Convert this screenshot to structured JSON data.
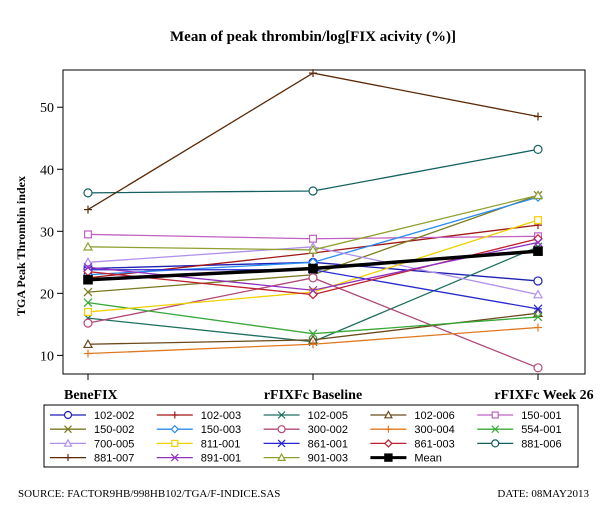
{
  "footer": {
    "source": "SOURCE: FACTOR9HB/998HB102/TGA/F-INDICE.SAS",
    "date": "DATE: 08MAY2013"
  },
  "chart_data": {
    "type": "line",
    "title": "Mean of peak thrombin/log[FIX acivity (%)]",
    "xlabel": "",
    "ylabel": "TGA Peak Thrombin index",
    "categories": [
      "BeneFIX",
      "rFIXFc Baseline",
      "rFIXFc Week 26"
    ],
    "ylim": [
      7,
      56
    ],
    "yticks": [
      10,
      20,
      30,
      40,
      50
    ],
    "grid": false,
    "legend_position": "bottom",
    "series": [
      {
        "name": "102-002",
        "color": "#1f1fb4",
        "marker": "circle",
        "values": [
          24,
          25,
          22
        ]
      },
      {
        "name": "102-003",
        "color": "#a01818",
        "marker": "plus",
        "values": [
          22.5,
          26.5,
          31
        ]
      },
      {
        "name": "102-005",
        "color": "#1f7060",
        "marker": "x",
        "values": [
          16,
          12.2,
          27.5
        ]
      },
      {
        "name": "102-006",
        "color": "#6a4a1a",
        "marker": "triangle",
        "values": [
          11.8,
          12.5,
          16.8
        ]
      },
      {
        "name": "150-001",
        "color": "#c060c0",
        "marker": "square",
        "values": [
          29.5,
          28.8,
          29.2
        ]
      },
      {
        "name": "150-002",
        "color": "#7a7a20",
        "marker": "x",
        "values": [
          20.2,
          23,
          35.8
        ]
      },
      {
        "name": "150-003",
        "color": "#2a8cf0",
        "marker": "diamond",
        "values": [
          23,
          25,
          35.5
        ]
      },
      {
        "name": "300-002",
        "color": "#b04878",
        "marker": "circle",
        "values": [
          15.2,
          22.5,
          8
        ]
      },
      {
        "name": "300-004",
        "color": "#e07820",
        "marker": "plus",
        "values": [
          10.3,
          11.8,
          14.5
        ]
      },
      {
        "name": "554-001",
        "color": "#38a838",
        "marker": "x",
        "values": [
          18.5,
          13.5,
          16.2
        ]
      },
      {
        "name": "700-005",
        "color": "#b090e8",
        "marker": "triangle",
        "values": [
          25,
          27.5,
          19.8
        ]
      },
      {
        "name": "811-001",
        "color": "#f0d000",
        "marker": "square",
        "values": [
          17,
          20.2,
          31.8
        ]
      },
      {
        "name": "861-001",
        "color": "#2828d0",
        "marker": "star",
        "values": [
          23.8,
          23.8,
          17.5
        ]
      },
      {
        "name": "861-003",
        "color": "#c02030",
        "marker": "diamond",
        "values": [
          23.5,
          19.8,
          28.8
        ]
      },
      {
        "name": "881-006",
        "color": "#146060",
        "marker": "circle",
        "values": [
          36.2,
          36.5,
          43.2
        ]
      },
      {
        "name": "881-007",
        "color": "#5a2a08",
        "marker": "plus",
        "values": [
          33.5,
          55.5,
          48.5
        ]
      },
      {
        "name": "891-001",
        "color": "#9030c0",
        "marker": "x",
        "values": [
          24.2,
          20.5,
          28.2
        ]
      },
      {
        "name": "901-003",
        "color": "#90a030",
        "marker": "triangle",
        "values": [
          27.5,
          27,
          35.8
        ]
      },
      {
        "name": "Mean",
        "color": "#000000",
        "marker": "square-filled",
        "width": 3.5,
        "values": [
          22.2,
          24,
          26.8
        ]
      }
    ]
  }
}
